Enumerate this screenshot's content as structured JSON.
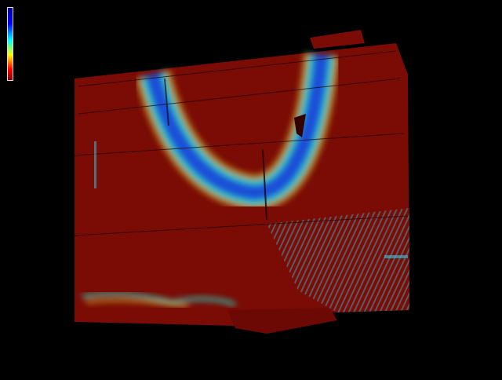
{
  "viewer": {
    "background": "#000000",
    "surface_base_color": "#7a0b05",
    "colormap": [
      "#00008f",
      "#0000ff",
      "#00ffff",
      "#ffff00",
      "#ff0000",
      "#7f0000"
    ],
    "colorbar_icon": "colorbar-legend-icon"
  }
}
